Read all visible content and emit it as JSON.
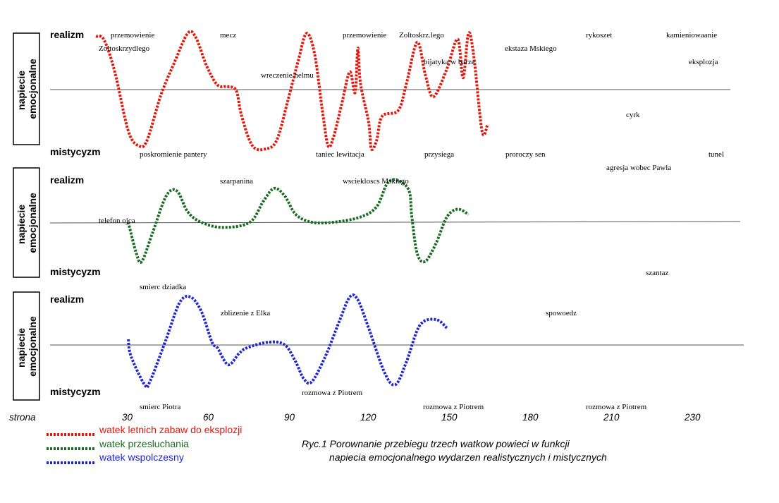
{
  "chart_data": {
    "type": "line",
    "x_axis": {
      "label": "strona",
      "ticks": [
        30,
        60,
        90,
        120,
        150,
        180,
        210,
        230
      ]
    },
    "panel_y_label": "napiecie emocjonalne",
    "y_top_label": "realizm",
    "y_bottom_label": "mistycyzm",
    "ylim": [
      -1,
      1
    ],
    "legend": [
      {
        "label": "watek letnich zabaw do eksplozji",
        "color": "#e8150a"
      },
      {
        "label": "watek przesluchania",
        "color": "#1a6b24"
      },
      {
        "label": "watek wspolczesny",
        "color": "#1f26d6"
      }
    ],
    "caption": [
      "Ryc.1 Porownanie przebiegu  trzech watkow powieci w funkcji",
      "napiecia emocjonalnego wydarzen realistycznych  i mistycznych"
    ],
    "panels": [
      {
        "series": "watek letnich zabaw do eksplozji",
        "color": "#e8150a",
        "points": [
          [
            18,
            0.9
          ],
          [
            21,
            0.84
          ],
          [
            25,
            0.3
          ],
          [
            30,
            -0.7
          ],
          [
            34,
            -0.95
          ],
          [
            37,
            -0.85
          ],
          [
            42,
            -0.1
          ],
          [
            47,
            0.45
          ],
          [
            52,
            0.95
          ],
          [
            55,
            0.88
          ],
          [
            59,
            0.4
          ],
          [
            63,
            0.08
          ],
          [
            67,
            0.05
          ],
          [
            70,
            -0.02
          ],
          [
            72,
            -0.45
          ],
          [
            76,
            -0.95
          ],
          [
            81,
            -1.0
          ],
          [
            85,
            -0.85
          ],
          [
            89,
            -0.2
          ],
          [
            93,
            0.5
          ],
          [
            96,
            0.95
          ],
          [
            99,
            0.6
          ],
          [
            102,
            -0.4
          ],
          [
            104,
            -0.95
          ],
          [
            106,
            -0.8
          ],
          [
            109,
            -0.25
          ],
          [
            112,
            0.3
          ],
          [
            114,
            -0.05
          ],
          [
            115,
            0.7
          ],
          [
            116,
            0.1
          ],
          [
            119,
            -0.55
          ],
          [
            120,
            -1.0
          ],
          [
            122,
            -0.85
          ],
          [
            124,
            -0.45
          ],
          [
            130,
            -0.35
          ],
          [
            133,
            0.1
          ],
          [
            137,
            0.8
          ],
          [
            140,
            0.25
          ],
          [
            143,
            -0.12
          ],
          [
            148,
            0.35
          ],
          [
            152,
            0.85
          ],
          [
            154,
            0.2
          ],
          [
            156,
            0.95
          ],
          [
            158,
            0.55
          ],
          [
            161,
            -0.7
          ],
          [
            163,
            -0.6
          ]
        ],
        "annotations": [
          "przemowienie",
          "Zoltoskrzydlego",
          "mecz",
          "wreczenie helmu",
          "przemowienie",
          "Zoltoskrz.lego",
          "bijatyka w  barze",
          "ekstaza Mskiego",
          "rykoszet",
          "kamieniowaanie",
          "eksplozja",
          "cyrk",
          "poskromienie pantery",
          "taniec  lewitacja",
          "przysiega",
          "proroczy sen",
          "tunel"
        ]
      },
      {
        "series": "watek przesluchania",
        "color": "#1a6b24",
        "points": [
          [
            30,
            0.0
          ],
          [
            33,
            -0.6
          ],
          [
            35,
            -0.75
          ],
          [
            39,
            -0.2
          ],
          [
            44,
            0.5
          ],
          [
            48,
            0.6
          ],
          [
            52,
            0.2
          ],
          [
            57,
            0.0
          ],
          [
            65,
            -0.1
          ],
          [
            75,
            0.0
          ],
          [
            80,
            0.4
          ],
          [
            84,
            0.65
          ],
          [
            88,
            0.5
          ],
          [
            92,
            0.15
          ],
          [
            98,
            0.0
          ],
          [
            106,
            0.0
          ],
          [
            116,
            0.1
          ],
          [
            122,
            0.3
          ],
          [
            126,
            0.75
          ],
          [
            130,
            0.8
          ],
          [
            134,
            0.6
          ],
          [
            135,
            0.1
          ],
          [
            137,
            -0.6
          ],
          [
            140,
            -0.75
          ],
          [
            144,
            -0.4
          ],
          [
            148,
            0.1
          ],
          [
            152,
            0.25
          ],
          [
            156,
            0.15
          ]
        ],
        "annotations": [
          "telefon ojca",
          "smierc dziadka",
          "szarpanina",
          "wsciekloscs Mskiego",
          "agresja wobec Pawla",
          "szantaz"
        ]
      },
      {
        "series": "watek wspolczesny",
        "color": "#1f26d6",
        "points": [
          [
            30,
            0.1
          ],
          [
            31,
            -0.2
          ],
          [
            36,
            -0.7
          ],
          [
            38,
            -0.65
          ],
          [
            44,
            0.1
          ],
          [
            49,
            0.75
          ],
          [
            53,
            0.85
          ],
          [
            57,
            0.6
          ],
          [
            61,
            0.05
          ],
          [
            63,
            -0.05
          ],
          [
            67,
            -0.35
          ],
          [
            71,
            -0.15
          ],
          [
            74,
            -0.05
          ],
          [
            82,
            0.05
          ],
          [
            88,
            0.0
          ],
          [
            92,
            -0.3
          ],
          [
            95,
            -0.6
          ],
          [
            98,
            -0.65
          ],
          [
            103,
            -0.2
          ],
          [
            108,
            0.4
          ],
          [
            112,
            0.85
          ],
          [
            115,
            0.8
          ],
          [
            119,
            0.3
          ],
          [
            125,
            -0.5
          ],
          [
            129,
            -0.7
          ],
          [
            133,
            -0.3
          ],
          [
            138,
            0.35
          ],
          [
            144,
            0.45
          ],
          [
            148,
            0.3
          ]
        ],
        "annotations": [
          "zblizenie z  Elka",
          "smierc Piotra",
          "rozmowa z Piotrem",
          "rozmowa  z Piotrem",
          "spowoedz",
          "rozmowa  z Piotrem"
        ]
      }
    ]
  }
}
